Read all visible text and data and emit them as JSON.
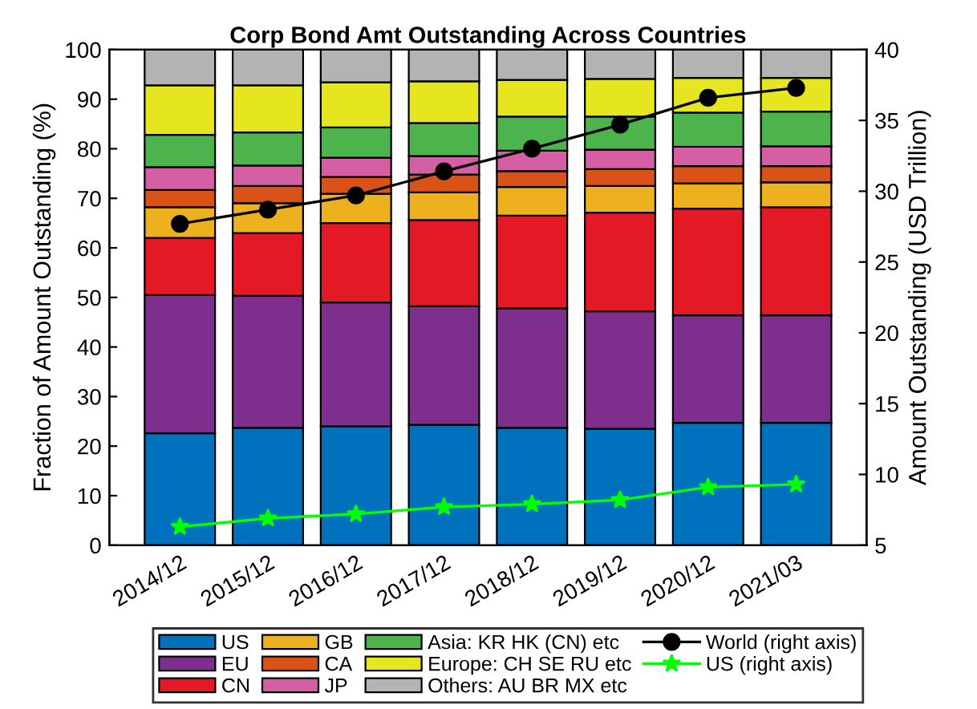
{
  "chart_data": {
    "type": "bar",
    "stacked": true,
    "title": "Corp Bond Amt Outstanding Across Countries",
    "ylabel": "Fraction of Amount Outstanding (%)",
    "y2label": "Amount Outstanding (USD Trillion)",
    "categories": [
      "2014/12",
      "2015/12",
      "2016/12",
      "2017/12",
      "2018/12",
      "2019/12",
      "2020/12",
      "2021/03"
    ],
    "ylim": [
      0,
      100
    ],
    "yticks": [
      0,
      10,
      20,
      30,
      40,
      50,
      60,
      70,
      80,
      90,
      100
    ],
    "y2lim": [
      5,
      40
    ],
    "y2ticks": [
      5,
      10,
      15,
      20,
      25,
      30,
      35,
      40
    ],
    "grid": false,
    "legend": "bottom",
    "series": [
      {
        "name": "US",
        "color": "#0072bd",
        "values": [
          22.6,
          23.7,
          24.0,
          24.3,
          23.7,
          23.5,
          24.7,
          24.7
        ]
      },
      {
        "name": "EU",
        "color": "#7e2f8e",
        "values": [
          27.9,
          26.6,
          25.0,
          23.9,
          24.1,
          23.7,
          21.7,
          21.7
        ]
      },
      {
        "name": "CN",
        "color": "#e31a26",
        "values": [
          11.5,
          12.7,
          16.0,
          17.4,
          18.7,
          19.9,
          21.5,
          21.8
        ]
      },
      {
        "name": "GB",
        "color": "#edb120",
        "values": [
          6.2,
          6.0,
          5.9,
          5.6,
          5.8,
          5.4,
          5.1,
          5.0
        ]
      },
      {
        "name": "CA",
        "color": "#d95319",
        "values": [
          3.5,
          3.5,
          3.4,
          3.6,
          3.2,
          3.4,
          3.5,
          3.3
        ]
      },
      {
        "name": "JP",
        "color": "#d45fa5",
        "values": [
          4.6,
          4.1,
          3.9,
          3.7,
          4.1,
          3.9,
          3.9,
          4.0
        ]
      },
      {
        "name": "Asia: KR HK (CN) etc",
        "color": "#4db34d",
        "values": [
          6.5,
          6.7,
          6.1,
          6.7,
          6.9,
          6.7,
          6.9,
          7.0
        ]
      },
      {
        "name": "Europe: CH SE RU etc",
        "color": "#e6e620",
        "values": [
          10.0,
          9.5,
          9.1,
          8.4,
          7.4,
          7.6,
          7.0,
          6.8
        ]
      },
      {
        "name": "Others: AU BR MX etc",
        "color": "#b3b3b3",
        "values": [
          7.2,
          7.2,
          6.6,
          6.4,
          6.1,
          5.9,
          5.7,
          5.7
        ]
      },
      {
        "name": "World (right axis)",
        "type": "line",
        "axis": "y2",
        "color": "#000000",
        "marker": "circle",
        "line_style": "solid",
        "values": [
          27.7,
          28.7,
          29.7,
          31.4,
          33.0,
          34.7,
          36.6,
          37.3
        ]
      },
      {
        "name": "US (right axis)",
        "type": "line",
        "axis": "y2",
        "color": "#00ff00",
        "marker": "star",
        "line_style": "solid",
        "values": [
          6.3,
          6.9,
          7.2,
          7.7,
          7.9,
          8.2,
          9.1,
          9.3
        ]
      }
    ]
  }
}
